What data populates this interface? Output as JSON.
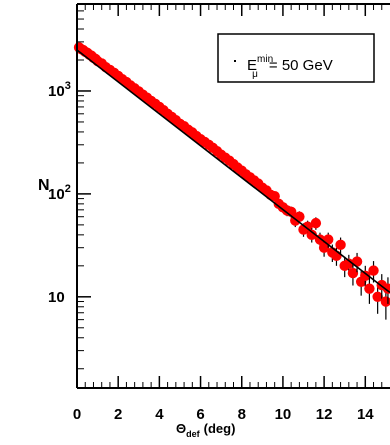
{
  "chart_data": {
    "type": "scatter",
    "xlabel": {
      "symbol": "Θ",
      "subscript": "def",
      "unit": "(deg)"
    },
    "ylabel": "N",
    "x_ticks": [
      "0",
      "2",
      "4",
      "6",
      "8",
      "10",
      "12",
      "14"
    ],
    "y_ticks": [
      {
        "value": 1000,
        "base": "10",
        "exp": "3"
      },
      {
        "value": 100,
        "base": "10",
        "exp": "2"
      },
      {
        "value": 10,
        "base": "10",
        "exp": ""
      }
    ],
    "xlim": [
      0,
      15.2
    ],
    "ylim": [
      1.3,
      7000
    ],
    "yscale": "log",
    "legend": {
      "symbol": "E",
      "subscript": "μ",
      "superscript": "min",
      "text": "= 50 GeV",
      "placement": "top-right"
    },
    "fit": {
      "type": "exponential",
      "x": [
        0,
        15.2
      ],
      "y": [
        2500,
        11
      ]
    },
    "series": [
      {
        "marker_color": "#ff0000",
        "x": [
          0.1,
          0.2,
          0.3,
          0.4,
          0.5,
          0.6,
          0.7,
          0.8,
          0.9,
          1.0,
          1.2,
          1.4,
          1.6,
          1.8,
          2.0,
          2.2,
          2.4,
          2.6,
          2.8,
          3.0,
          3.2,
          3.4,
          3.6,
          3.8,
          4.0,
          4.2,
          4.4,
          4.6,
          4.8,
          5.0,
          5.2,
          5.4,
          5.6,
          5.8,
          6.0,
          6.2,
          6.4,
          6.6,
          6.8,
          7.0,
          7.2,
          7.4,
          7.6,
          7.8,
          8.0,
          8.2,
          8.4,
          8.6,
          8.8,
          9.0,
          9.2,
          9.4,
          9.6,
          9.8,
          10.0,
          10.2,
          10.4,
          10.6,
          10.8,
          11.0,
          11.2,
          11.4,
          11.6,
          11.8,
          12.0,
          12.2,
          12.4,
          12.6,
          12.8,
          13.0,
          13.2,
          13.4,
          13.6,
          13.8,
          14.0,
          14.2,
          14.4,
          14.6,
          14.8,
          15.0,
          15.1
        ],
        "y": [
          2650,
          2550,
          2500,
          2400,
          2350,
          2250,
          2200,
          2100,
          2050,
          1950,
          1850,
          1700,
          1600,
          1500,
          1400,
          1300,
          1220,
          1130,
          1060,
          990,
          920,
          860,
          800,
          750,
          700,
          650,
          600,
          560,
          520,
          480,
          455,
          420,
          395,
          365,
          340,
          320,
          300,
          280,
          260,
          240,
          225,
          210,
          195,
          180,
          168,
          155,
          145,
          135,
          126,
          115,
          108,
          98,
          95,
          80,
          74,
          69,
          67,
          55,
          60,
          45,
          48,
          40,
          52,
          36,
          30,
          36,
          27,
          25,
          32,
          20,
          21,
          17,
          22,
          14,
          16,
          12,
          18,
          10,
          13,
          9,
          12
        ]
      }
    ]
  }
}
